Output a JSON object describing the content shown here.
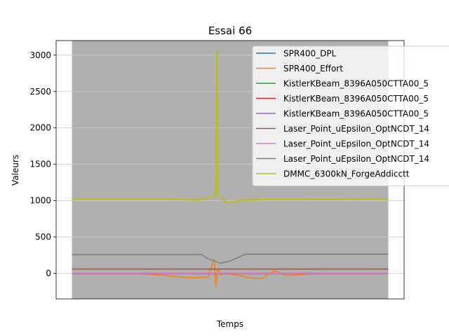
{
  "chart_data": {
    "type": "line",
    "title": "Essai 66",
    "xlabel": "Temps",
    "ylabel": "Valeurs",
    "ylim": [
      -350,
      3200
    ],
    "xlim": [
      -50,
      1050
    ],
    "yticks": [
      0,
      500,
      1000,
      1500,
      2000,
      2500,
      3000
    ],
    "grid": true,
    "legend_location": "upper right",
    "background_band_color": "#b0b0b0",
    "series": [
      {
        "name": "SPR400_DPL",
        "color": "#1f77b4",
        "x": [
          0,
          1000
        ],
        "y": [
          0,
          0
        ]
      },
      {
        "name": "SPR400_Effort",
        "color": "#ff7f0e",
        "x": [
          0,
          200,
          250,
          320,
          380,
          430,
          450,
          455,
          460,
          470,
          480,
          520,
          560,
          600,
          640,
          680,
          750,
          850,
          1000
        ],
        "y": [
          0,
          0,
          -10,
          -40,
          -60,
          -50,
          200,
          -180,
          60,
          -20,
          0,
          -20,
          -60,
          -70,
          40,
          -30,
          -5,
          0,
          0
        ]
      },
      {
        "name": "KistlerKBeam_8396A050CTTA00_5",
        "color": "#2ca02c",
        "x": [
          0,
          1000
        ],
        "y": [
          0,
          0
        ]
      },
      {
        "name": "KistlerKBeam_8396A050CTTA00_5",
        "color": "#d62728",
        "x": [
          0,
          1000
        ],
        "y": [
          0,
          0
        ]
      },
      {
        "name": "KistlerKBeam_8396A050CTTA00_5",
        "color": "#9467bd",
        "x": [
          0,
          1000
        ],
        "y": [
          0,
          0
        ]
      },
      {
        "name": "Laser_Point_uEpsilon_OptNCDT_14",
        "color": "#8c564b",
        "x": [
          0,
          1000
        ],
        "y": [
          60,
          60
        ]
      },
      {
        "name": "Laser_Point_uEpsilon_OptNCDT_14",
        "color": "#e377c2",
        "x": [
          0,
          1000
        ],
        "y": [
          5,
          5
        ]
      },
      {
        "name": "Laser_Point_uEpsilon_OptNCDT_14",
        "color": "#7f7f7f",
        "x": [
          0,
          410,
          430,
          470,
          500,
          530,
          550,
          1000
        ],
        "y": [
          260,
          260,
          200,
          140,
          170,
          230,
          265,
          265
        ]
      },
      {
        "name": "DMMC_6300kN_ForgeAddicctt",
        "color": "#bcbd22",
        "x": [
          0,
          150,
          300,
          400,
          440,
          455,
          458,
          461,
          470,
          480,
          490,
          520,
          550,
          600,
          1000
        ],
        "y": [
          1020,
          1025,
          1020,
          1010,
          1050,
          1080,
          3050,
          1100,
          1060,
          1000,
          980,
          990,
          1010,
          1015,
          1020
        ]
      }
    ]
  }
}
